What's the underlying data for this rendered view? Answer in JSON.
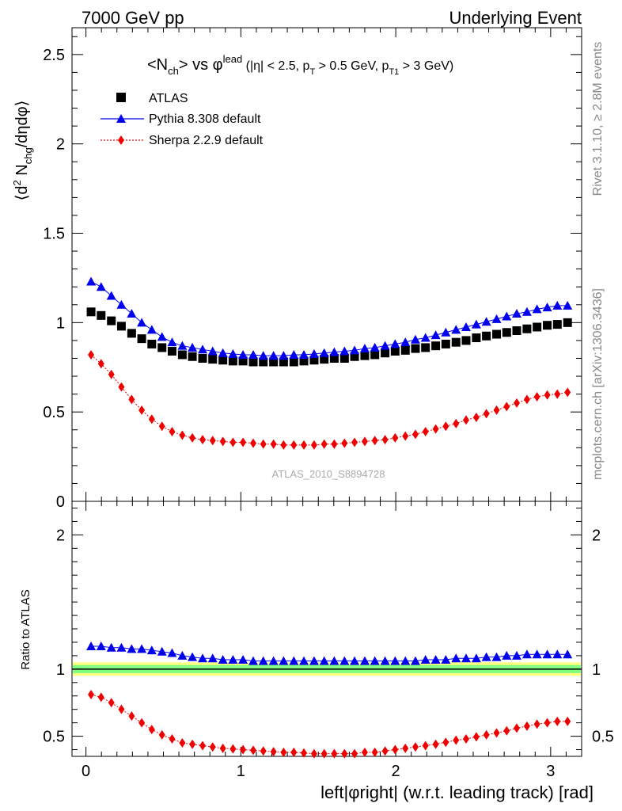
{
  "header": {
    "left": "7000 GeV pp",
    "right": "Underlying Event"
  },
  "side_text": {
    "rivet": "Rivet 3.1.10, ≥ 2.8M events",
    "mcplots": "mcplots.cern.ch [arXiv:1306.3436]"
  },
  "plot_title": {
    "main": "<N_ch> vs φ^lead",
    "cuts": "(|η| < 2.5, p_T > 0.5 GeV, p_T1 > 3 GeV)"
  },
  "watermark": "ATLAS_2010_S8894728",
  "y_label_top": "⟨d² N_chg/dηdφ⟩",
  "y_label_bottom": "Ratio to ATLAS",
  "x_label": "left|φright| (w.r.t. leading track) [rad]",
  "colors": {
    "atlas": "#000000",
    "pythia": "#0000ee",
    "sherpa": "#ee0000",
    "band_inner": "#80ff80",
    "band_outer": "#ffff80"
  },
  "legend": [
    {
      "label": "ATLAS",
      "marker": "square"
    },
    {
      "label": "Pythia 8.308 default",
      "marker": "triangle"
    },
    {
      "label": "Sherpa 2.2.9 default",
      "marker": "diamond"
    }
  ],
  "chart_data": [
    {
      "type": "scatter",
      "panel": "main",
      "xlabel": "",
      "ylabel": "⟨d² N_chg/dηdφ⟩",
      "xlim": [
        -0.09,
        3.2
      ],
      "ylim": [
        0,
        2.65
      ],
      "yticks": [
        0,
        0.5,
        1,
        1.5,
        2,
        2.5
      ],
      "x": [
        0.033,
        0.098,
        0.164,
        0.229,
        0.295,
        0.36,
        0.425,
        0.491,
        0.556,
        0.622,
        0.687,
        0.753,
        0.818,
        0.884,
        0.949,
        1.014,
        1.08,
        1.145,
        1.211,
        1.276,
        1.342,
        1.407,
        1.473,
        1.538,
        1.603,
        1.669,
        1.734,
        1.8,
        1.865,
        1.931,
        1.996,
        2.062,
        2.127,
        2.192,
        2.258,
        2.323,
        2.389,
        2.454,
        2.52,
        2.585,
        2.651,
        2.716,
        2.781,
        2.847,
        2.912,
        2.978,
        3.043,
        3.109
      ],
      "series": [
        {
          "name": "ATLAS",
          "values": [
            1.06,
            1.04,
            1.01,
            0.98,
            0.94,
            0.91,
            0.88,
            0.86,
            0.84,
            0.82,
            0.81,
            0.8,
            0.795,
            0.79,
            0.785,
            0.785,
            0.78,
            0.78,
            0.78,
            0.78,
            0.78,
            0.785,
            0.79,
            0.795,
            0.8,
            0.8,
            0.81,
            0.815,
            0.82,
            0.83,
            0.84,
            0.845,
            0.855,
            0.86,
            0.87,
            0.88,
            0.89,
            0.9,
            0.915,
            0.925,
            0.935,
            0.945,
            0.955,
            0.965,
            0.975,
            0.985,
            0.99,
            1.0
          ]
        },
        {
          "name": "Pythia 8.308 default",
          "values": [
            1.23,
            1.2,
            1.15,
            1.1,
            1.05,
            1.0,
            0.96,
            0.92,
            0.89,
            0.87,
            0.86,
            0.85,
            0.84,
            0.83,
            0.825,
            0.82,
            0.82,
            0.815,
            0.815,
            0.815,
            0.82,
            0.82,
            0.825,
            0.83,
            0.835,
            0.84,
            0.845,
            0.855,
            0.86,
            0.87,
            0.88,
            0.89,
            0.905,
            0.915,
            0.93,
            0.945,
            0.96,
            0.975,
            0.99,
            1.005,
            1.02,
            1.035,
            1.05,
            1.06,
            1.075,
            1.085,
            1.095,
            1.095
          ]
        },
        {
          "name": "Sherpa 2.2.9 default",
          "values": [
            0.82,
            0.77,
            0.71,
            0.64,
            0.57,
            0.51,
            0.46,
            0.42,
            0.39,
            0.37,
            0.355,
            0.345,
            0.34,
            0.335,
            0.33,
            0.33,
            0.325,
            0.32,
            0.32,
            0.315,
            0.315,
            0.315,
            0.315,
            0.32,
            0.32,
            0.325,
            0.33,
            0.335,
            0.34,
            0.345,
            0.355,
            0.365,
            0.375,
            0.39,
            0.405,
            0.42,
            0.435,
            0.455,
            0.47,
            0.49,
            0.51,
            0.53,
            0.55,
            0.57,
            0.585,
            0.595,
            0.6,
            0.61
          ]
        }
      ]
    },
    {
      "type": "scatter",
      "panel": "ratio",
      "xlabel": "left|φright| (w.r.t. leading track) [rad]",
      "ylabel": "Ratio to ATLAS",
      "xlim": [
        -0.09,
        3.2
      ],
      "ylim": [
        0.35,
        2.25
      ],
      "yticks": [
        0.5,
        1,
        2
      ],
      "xticks": [
        0,
        1,
        2,
        3
      ],
      "x": [
        0.033,
        0.098,
        0.164,
        0.229,
        0.295,
        0.36,
        0.425,
        0.491,
        0.556,
        0.622,
        0.687,
        0.753,
        0.818,
        0.884,
        0.949,
        1.014,
        1.08,
        1.145,
        1.211,
        1.276,
        1.342,
        1.407,
        1.473,
        1.538,
        1.603,
        1.669,
        1.734,
        1.8,
        1.865,
        1.931,
        1.996,
        2.062,
        2.127,
        2.192,
        2.258,
        2.323,
        2.389,
        2.454,
        2.52,
        2.585,
        2.651,
        2.716,
        2.781,
        2.847,
        2.912,
        2.978,
        3.043,
        3.109
      ],
      "band": {
        "inner": 0.03,
        "outer": 0.05
      },
      "series": [
        {
          "name": "Pythia 8.308 default",
          "values": [
            1.17,
            1.17,
            1.16,
            1.16,
            1.15,
            1.15,
            1.14,
            1.13,
            1.12,
            1.1,
            1.09,
            1.08,
            1.08,
            1.07,
            1.07,
            1.07,
            1.06,
            1.06,
            1.06,
            1.06,
            1.06,
            1.06,
            1.06,
            1.06,
            1.06,
            1.06,
            1.06,
            1.06,
            1.06,
            1.06,
            1.06,
            1.06,
            1.06,
            1.07,
            1.07,
            1.07,
            1.08,
            1.08,
            1.08,
            1.09,
            1.09,
            1.1,
            1.1,
            1.11,
            1.11,
            1.11,
            1.11,
            1.11
          ]
        },
        {
          "name": "Sherpa 2.2.9 default",
          "values": [
            0.81,
            0.79,
            0.75,
            0.7,
            0.65,
            0.6,
            0.55,
            0.51,
            0.48,
            0.45,
            0.44,
            0.43,
            0.42,
            0.41,
            0.405,
            0.4,
            0.395,
            0.39,
            0.385,
            0.38,
            0.38,
            0.375,
            0.37,
            0.37,
            0.37,
            0.37,
            0.37,
            0.38,
            0.38,
            0.39,
            0.4,
            0.41,
            0.42,
            0.43,
            0.44,
            0.455,
            0.47,
            0.48,
            0.495,
            0.51,
            0.525,
            0.54,
            0.56,
            0.575,
            0.59,
            0.6,
            0.61,
            0.61
          ]
        }
      ]
    }
  ]
}
